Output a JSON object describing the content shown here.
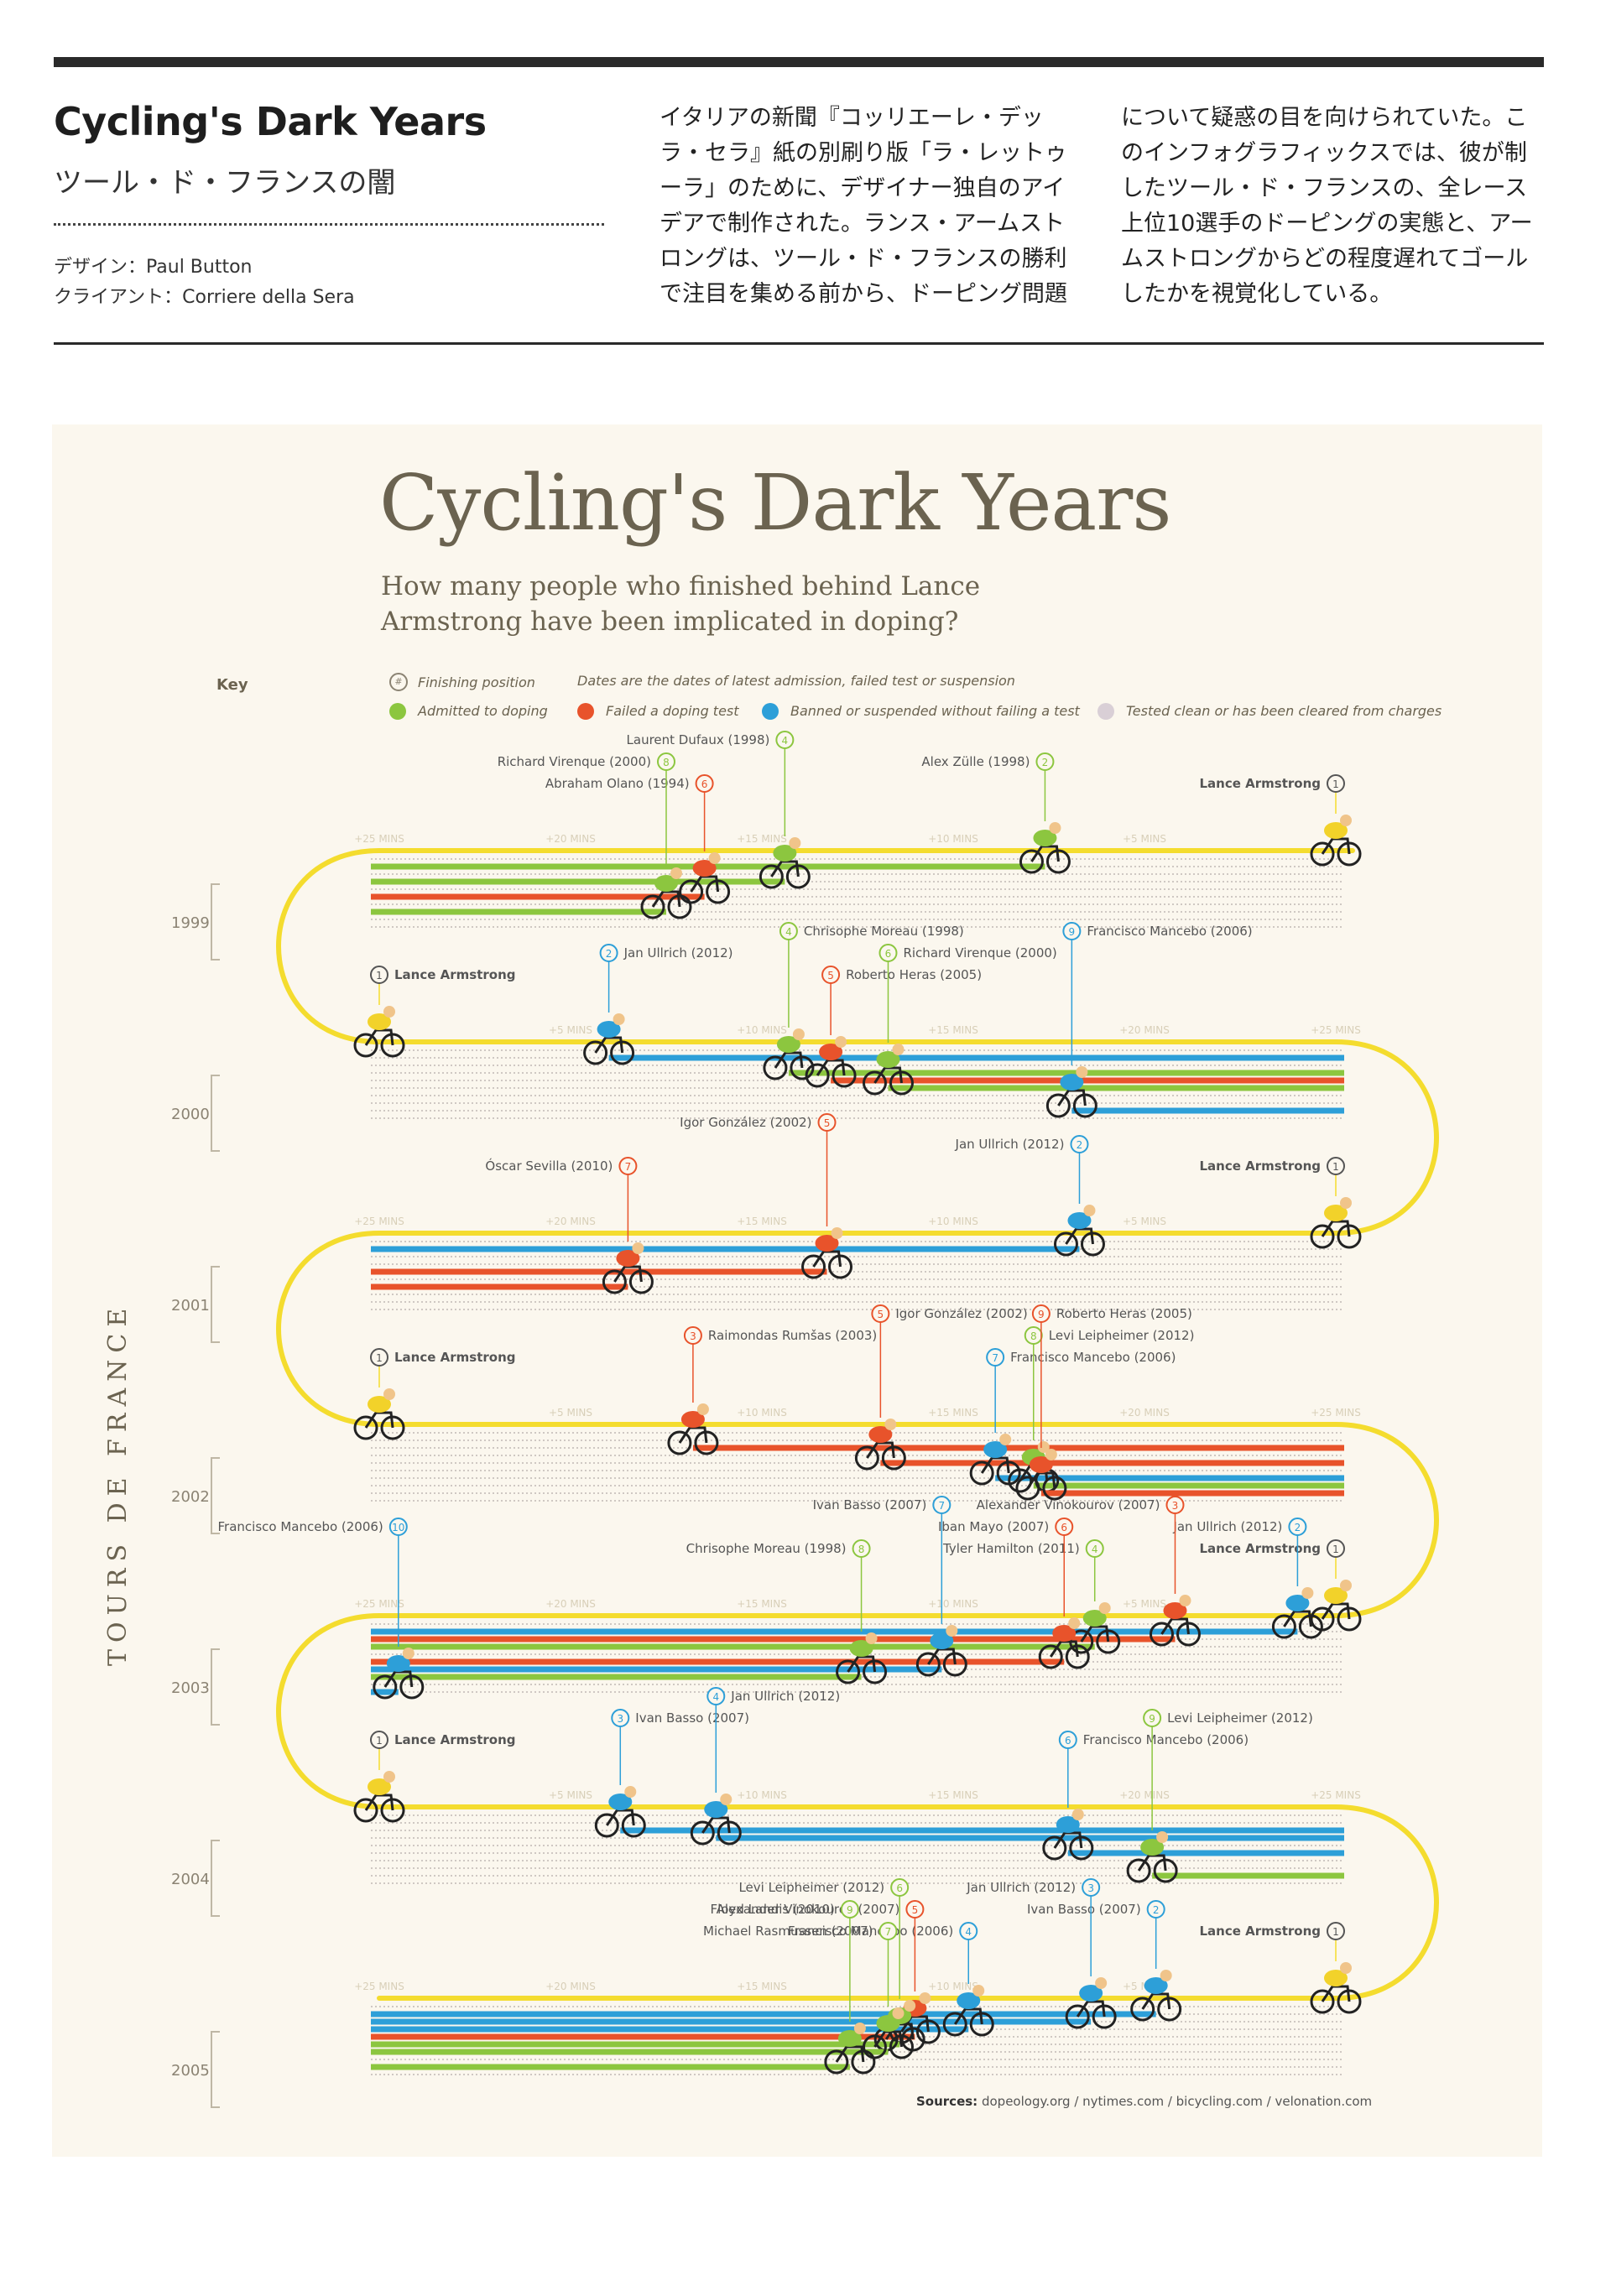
{
  "header": {
    "title": "Cycling's Dark Years",
    "subtitle": "ツール・ド・フランスの闇",
    "design_credit": "デザイン：Paul Button",
    "client_credit": "クライアント：Corriere della Sera",
    "description_col1": "イタリアの新聞『コッリエーレ・デッラ・セラ』紙の別刷り版「ラ・レットゥーラ」のために、デザイナー独自のアイデアで制作された。ランス・アームストロングは、ツール・ド・フランスの勝利で注目を集める前から、ドーピング問題",
    "description_col2": "について疑惑の目を向けられていた。このインフォグラフィックスでは、彼が制したツール・ド・フランスの、全レース上位10選手のドーピングの実態と、アームストロングからどの程度遅れてゴールしたかを視覚化している。"
  },
  "chart": {
    "title": "Cycling's Dark Years",
    "subtitle": "How many people who finished behind Lance Armstrong have been implicated in doping?",
    "axis_label": "TOURS DE FRANCE",
    "sources_label": "Sources:",
    "sources": "dopeology.org / nytimes.com / bicycling.com / velonation.com",
    "key": {
      "title": "Key",
      "finishing_position": "Finishing position",
      "dates_note": "Dates are the dates of latest admission, failed test or suspension",
      "admitted": "Admitted to doping",
      "failed": "Failed a doping test",
      "banned": "Banned or suspended without failing a test",
      "clean": "Tested clean or has been cleared from charges"
    },
    "colors": {
      "admitted": "#8cc63f",
      "failed": "#e8532b",
      "banned": "#2d9fd8",
      "clean": "#d9cfd6",
      "road": "#f4dc2e",
      "text": "#6b6350"
    },
    "minute_markers": [
      "+25 MINS",
      "+20 MINS",
      "+15 MINS",
      "+10 MINS",
      "+5 MINS"
    ]
  },
  "chart_data": {
    "type": "table",
    "years": [
      {
        "year": "1999",
        "direction": "rtl",
        "riders": [
          {
            "pos": 1,
            "name": "Lance Armstrong",
            "date": "",
            "status": "leader",
            "minutes": 0
          },
          {
            "pos": 2,
            "name": "Alex Zülle",
            "date": "1998",
            "status": "admitted",
            "minutes": 7.6
          },
          {
            "pos": 4,
            "name": "Laurent Dufaux",
            "date": "1998",
            "status": "admitted",
            "minutes": 14.4
          },
          {
            "pos": 6,
            "name": "Abraham Olano",
            "date": "1994",
            "status": "failed",
            "minutes": 16.5
          },
          {
            "pos": 8,
            "name": "Richard Virenque",
            "date": "2000",
            "status": "admitted",
            "minutes": 17.5
          }
        ]
      },
      {
        "year": "2000",
        "direction": "ltr",
        "riders": [
          {
            "pos": 1,
            "name": "Lance Armstrong",
            "date": "",
            "status": "leader",
            "minutes": 0
          },
          {
            "pos": 2,
            "name": "Jan Ullrich",
            "date": "2012",
            "status": "banned",
            "minutes": 6.0
          },
          {
            "pos": 4,
            "name": "Chrisophe Moreau",
            "date": "1998",
            "status": "admitted",
            "minutes": 10.7
          },
          {
            "pos": 5,
            "name": "Roberto Heras",
            "date": "2005",
            "status": "failed",
            "minutes": 11.8
          },
          {
            "pos": 6,
            "name": "Richard Virenque",
            "date": "2000",
            "status": "admitted",
            "minutes": 13.3
          },
          {
            "pos": 9,
            "name": "Francisco Mancebo",
            "date": "2006",
            "status": "banned",
            "minutes": 18.1
          }
        ]
      },
      {
        "year": "2001",
        "direction": "rtl",
        "riders": [
          {
            "pos": 1,
            "name": "Lance Armstrong",
            "date": "",
            "status": "leader",
            "minutes": 0
          },
          {
            "pos": 2,
            "name": "Jan Ullrich",
            "date": "2012",
            "status": "banned",
            "minutes": 6.7
          },
          {
            "pos": 5,
            "name": "Igor González",
            "date": "2002",
            "status": "failed",
            "minutes": 13.3
          },
          {
            "pos": 7,
            "name": "Óscar Sevilla",
            "date": "2010",
            "status": "failed",
            "minutes": 18.5
          }
        ]
      },
      {
        "year": "2002",
        "direction": "ltr",
        "riders": [
          {
            "pos": 1,
            "name": "Lance Armstrong",
            "date": "",
            "status": "leader",
            "minutes": 0
          },
          {
            "pos": 3,
            "name": "Raimondas Rumšas",
            "date": "2003",
            "status": "failed",
            "minutes": 8.2
          },
          {
            "pos": 5,
            "name": "Igor González",
            "date": "2002",
            "status": "failed",
            "minutes": 13.1
          },
          {
            "pos": 7,
            "name": "Francisco Mancebo",
            "date": "2006",
            "status": "banned",
            "minutes": 16.1
          },
          {
            "pos": 8,
            "name": "Levi Leipheimer",
            "date": "2012",
            "status": "admitted",
            "minutes": 17.1
          },
          {
            "pos": 9,
            "name": "Roberto Heras",
            "date": "2005",
            "status": "failed",
            "minutes": 17.3
          }
        ]
      },
      {
        "year": "2003",
        "direction": "rtl",
        "riders": [
          {
            "pos": 1,
            "name": "Lance Armstrong",
            "date": "",
            "status": "leader",
            "minutes": 0
          },
          {
            "pos": 2,
            "name": "Jan Ullrich",
            "date": "2012",
            "status": "banned",
            "minutes": 1.0
          },
          {
            "pos": 3,
            "name": "Alexander Vinokourov",
            "date": "2007",
            "status": "failed",
            "minutes": 4.2
          },
          {
            "pos": 4,
            "name": "Tyler Hamilton",
            "date": "2011",
            "status": "admitted",
            "minutes": 6.3
          },
          {
            "pos": 6,
            "name": "Iban Mayo",
            "date": "2007",
            "status": "failed",
            "minutes": 7.1
          },
          {
            "pos": 7,
            "name": "Ivan Basso",
            "date": "2007",
            "status": "banned",
            "minutes": 10.3
          },
          {
            "pos": 8,
            "name": "Chrisophe Moreau",
            "date": "1998",
            "status": "admitted",
            "minutes": 12.4
          },
          {
            "pos": 10,
            "name": "Francisco Mancebo",
            "date": "2006",
            "status": "banned",
            "minutes": 24.5
          }
        ]
      },
      {
        "year": "2004",
        "direction": "ltr",
        "riders": [
          {
            "pos": 1,
            "name": "Lance Armstrong",
            "date": "",
            "status": "leader",
            "minutes": 0
          },
          {
            "pos": 3,
            "name": "Ivan Basso",
            "date": "2007",
            "status": "banned",
            "minutes": 6.3
          },
          {
            "pos": 4,
            "name": "Jan Ullrich",
            "date": "2012",
            "status": "banned",
            "minutes": 8.8
          },
          {
            "pos": 6,
            "name": "Francisco Mancebo",
            "date": "2006",
            "status": "banned",
            "minutes": 18.0
          },
          {
            "pos": 9,
            "name": "Levi Leipheimer",
            "date": "2012",
            "status": "admitted",
            "minutes": 20.2
          }
        ]
      },
      {
        "year": "2005",
        "direction": "rtl",
        "riders": [
          {
            "pos": 1,
            "name": "Lance Armstrong",
            "date": "",
            "status": "leader",
            "minutes": 0
          },
          {
            "pos": 2,
            "name": "Ivan Basso",
            "date": "2007",
            "status": "banned",
            "minutes": 4.7
          },
          {
            "pos": 3,
            "name": "Jan Ullrich",
            "date": "2012",
            "status": "banned",
            "minutes": 6.4
          },
          {
            "pos": 4,
            "name": "Francisco Mancebo",
            "date": "2006",
            "status": "banned",
            "minutes": 9.6
          },
          {
            "pos": 5,
            "name": "Alexander Vinokourov",
            "date": "2007",
            "status": "failed",
            "minutes": 11.0
          },
          {
            "pos": 6,
            "name": "Levi Leipheimer",
            "date": "2012",
            "status": "admitted",
            "minutes": 11.4
          },
          {
            "pos": 7,
            "name": "Michael Rasmussen",
            "date": "2007",
            "status": "admitted",
            "minutes": 11.7
          },
          {
            "pos": 9,
            "name": "Floyd Landis",
            "date": "2010",
            "status": "admitted",
            "minutes": 12.7
          }
        ]
      }
    ]
  }
}
